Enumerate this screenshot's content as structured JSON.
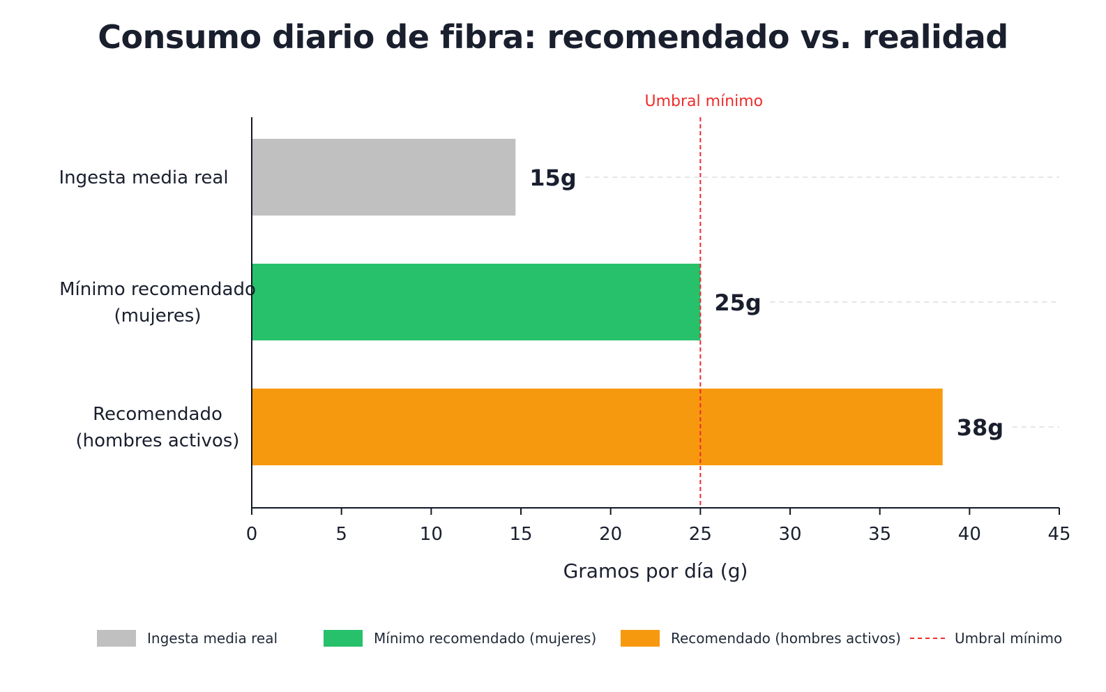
{
  "chart_data": {
    "type": "bar",
    "orientation": "horizontal",
    "title": "Consumo diario de fibra: recomendado vs. realidad",
    "xlabel": "Gramos por día (g)",
    "ylabel": "",
    "xlim": [
      0,
      45
    ],
    "x_ticks": [
      0,
      5,
      10,
      15,
      20,
      25,
      30,
      35,
      40,
      45
    ],
    "categories": [
      [
        "Ingesta media real"
      ],
      [
        "Mínimo recomendado",
        "(mujeres)"
      ],
      [
        "Recomendado",
        "(hombres activos)"
      ]
    ],
    "values": [
      14.7,
      25,
      38.5
    ],
    "data_labels": [
      "15g",
      "25g",
      "38g"
    ],
    "colors": [
      "#c0c0c0",
      "#27c06b",
      "#f7990f"
    ],
    "reference_line": {
      "value": 25,
      "label": "Umbral mínimo",
      "color": "#ef2b2b",
      "style": "dashed"
    },
    "grid": false,
    "guide_lines": "dashed light gray from data label to right edge",
    "legend_position": "bottom",
    "legend": [
      {
        "label": "Ingesta media real",
        "color": "#c0c0c0",
        "kind": "box"
      },
      {
        "label": "Mínimo recomendado (mujeres)",
        "color": "#27c06b",
        "kind": "box"
      },
      {
        "label": "Recomendado (hombres activos)",
        "color": "#f7990f",
        "kind": "box"
      },
      {
        "label": "Umbral mínimo",
        "color": "#ef2b2b",
        "kind": "dashed-line"
      }
    ]
  }
}
